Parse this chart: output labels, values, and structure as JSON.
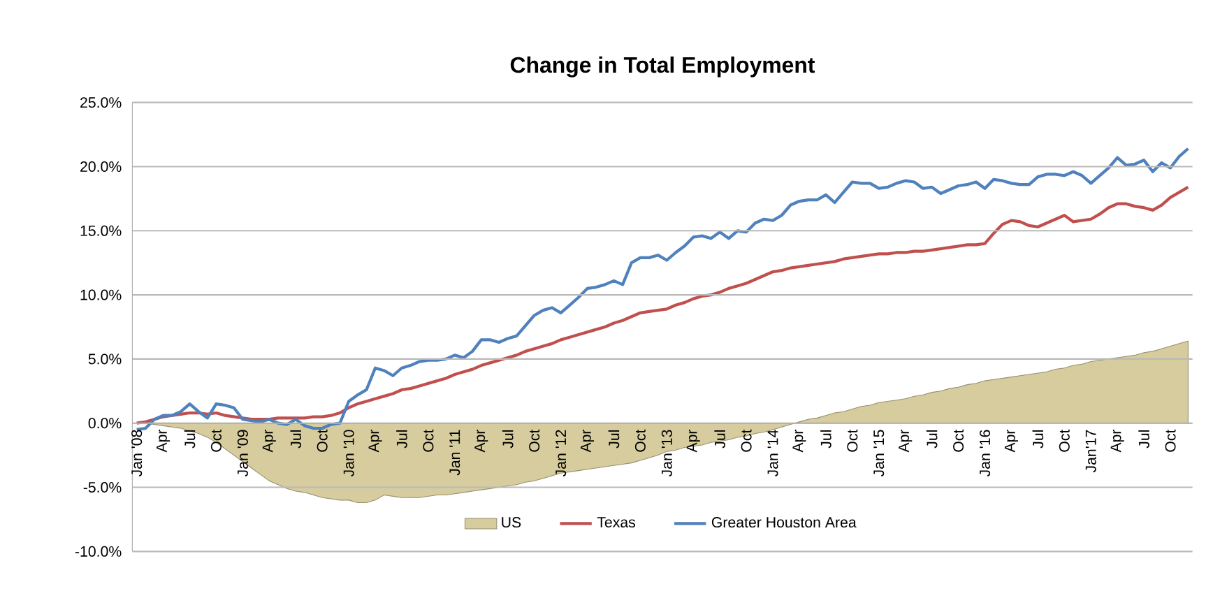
{
  "chart_data": {
    "type": "line",
    "title": "Change in Total Employment",
    "categories": [
      "Jan '08",
      null,
      null,
      "Apr",
      null,
      null,
      "Jul",
      null,
      null,
      "Oct",
      null,
      null,
      "Jan '09",
      null,
      null,
      "Apr",
      null,
      null,
      "Jul",
      null,
      null,
      "Oct",
      null,
      null,
      "Jan '10",
      null,
      null,
      "Apr",
      null,
      null,
      "Jul",
      null,
      null,
      "Oct",
      null,
      null,
      "Jan '11",
      null,
      null,
      "Apr",
      null,
      null,
      "Jul",
      null,
      null,
      "Oct",
      null,
      null,
      "Jan '12",
      null,
      null,
      "Apr",
      null,
      null,
      "Jul",
      null,
      null,
      "Oct",
      null,
      null,
      "Jan '13",
      null,
      null,
      "Apr",
      null,
      null,
      "Jul",
      null,
      null,
      "Oct",
      null,
      null,
      "Jan '14",
      null,
      null,
      "Apr",
      null,
      null,
      "Jul",
      null,
      null,
      "Oct",
      null,
      null,
      "Jan '15",
      null,
      null,
      "Apr",
      null,
      null,
      "Jul",
      null,
      null,
      "Oct",
      null,
      null,
      "Jan '16",
      null,
      null,
      "Apr",
      null,
      null,
      "Jul",
      null,
      null,
      "Oct",
      null,
      null,
      "Jan'17",
      null,
      null,
      "Apr",
      null,
      null,
      "Jul",
      null,
      null,
      "Oct",
      null,
      null
    ],
    "series": [
      {
        "name": "US",
        "type": "area",
        "color": "#d6cc9e",
        "values": [
          0,
          0,
          -0.1,
          -0.2,
          -0.3,
          -0.4,
          -0.6,
          -0.8,
          -1.1,
          -1.5,
          -2.0,
          -2.5,
          -3.0,
          -3.5,
          -4.0,
          -4.5,
          -4.8,
          -5.1,
          -5.3,
          -5.4,
          -5.6,
          -5.8,
          -5.9,
          -6.0,
          -6.0,
          -6.2,
          -6.2,
          -6.0,
          -5.6,
          -5.7,
          -5.8,
          -5.8,
          -5.8,
          -5.7,
          -5.6,
          -5.6,
          -5.5,
          -5.4,
          -5.3,
          -5.2,
          -5.1,
          -5.0,
          -4.9,
          -4.8,
          -4.6,
          -4.5,
          -4.3,
          -4.1,
          -3.9,
          -3.8,
          -3.7,
          -3.6,
          -3.5,
          -3.4,
          -3.3,
          -3.2,
          -3.1,
          -2.9,
          -2.7,
          -2.5,
          -2.2,
          -2.1,
          -1.9,
          -1.8,
          -1.7,
          -1.5,
          -1.4,
          -1.3,
          -1.1,
          -1.0,
          -0.8,
          -0.7,
          -0.5,
          -0.3,
          -0.1,
          0.1,
          0.3,
          0.4,
          0.6,
          0.8,
          0.9,
          1.1,
          1.3,
          1.4,
          1.6,
          1.7,
          1.8,
          1.9,
          2.1,
          2.2,
          2.4,
          2.5,
          2.7,
          2.8,
          3.0,
          3.1,
          3.3,
          3.4,
          3.5,
          3.6,
          3.7,
          3.8,
          3.9,
          4.0,
          4.2,
          4.3,
          4.5,
          4.6,
          4.8,
          4.9,
          5.0,
          5.1,
          5.2,
          5.3,
          5.5,
          5.6,
          5.8,
          6.0,
          6.2,
          6.4
        ]
      },
      {
        "name": "Texas",
        "color": "#c0504d",
        "values": [
          0.0,
          0.1,
          0.3,
          0.5,
          0.6,
          0.7,
          0.8,
          0.8,
          0.7,
          0.8,
          0.6,
          0.5,
          0.4,
          0.3,
          0.3,
          0.3,
          0.4,
          0.4,
          0.4,
          0.4,
          0.5,
          0.5,
          0.6,
          0.8,
          1.2,
          1.5,
          1.7,
          1.9,
          2.1,
          2.3,
          2.6,
          2.7,
          2.9,
          3.1,
          3.3,
          3.5,
          3.8,
          4.0,
          4.2,
          4.5,
          4.7,
          4.9,
          5.1,
          5.3,
          5.6,
          5.8,
          6.0,
          6.2,
          6.5,
          6.7,
          6.9,
          7.1,
          7.3,
          7.5,
          7.8,
          8.0,
          8.3,
          8.6,
          8.7,
          8.8,
          8.9,
          9.2,
          9.4,
          9.7,
          9.9,
          10.0,
          10.2,
          10.5,
          10.7,
          10.9,
          11.2,
          11.5,
          11.8,
          11.9,
          12.1,
          12.2,
          12.3,
          12.4,
          12.5,
          12.6,
          12.8,
          12.9,
          13.0,
          13.1,
          13.2,
          13.2,
          13.3,
          13.3,
          13.4,
          13.4,
          13.5,
          13.6,
          13.7,
          13.8,
          13.9,
          13.9,
          14.0,
          14.8,
          15.5,
          15.8,
          15.7,
          15.4,
          15.3,
          15.6,
          15.9,
          16.2,
          15.7,
          15.8,
          15.9,
          16.3,
          16.8,
          17.1,
          17.1,
          16.9,
          16.8,
          16.6,
          17.0,
          17.6,
          18.0,
          18.4
        ]
      },
      {
        "name": "Greater Houston Area",
        "color": "#4f81bd",
        "values": [
          -0.5,
          -0.4,
          0.3,
          0.6,
          0.6,
          0.9,
          1.5,
          0.9,
          0.4,
          1.5,
          1.4,
          1.2,
          0.3,
          0.2,
          0.1,
          0.3,
          0.0,
          -0.1,
          0.3,
          -0.2,
          -0.4,
          -0.4,
          -0.1,
          0.0,
          1.7,
          2.2,
          2.6,
          4.3,
          4.1,
          3.7,
          4.3,
          4.5,
          4.8,
          4.9,
          4.9,
          5.0,
          5.3,
          5.1,
          5.6,
          6.5,
          6.5,
          6.3,
          6.6,
          6.8,
          7.6,
          8.4,
          8.8,
          9.0,
          8.6,
          9.2,
          9.8,
          10.5,
          10.6,
          10.8,
          11.1,
          10.8,
          12.5,
          12.9,
          12.9,
          13.1,
          12.7,
          13.3,
          13.8,
          14.5,
          14.6,
          14.4,
          14.9,
          14.4,
          15.0,
          14.9,
          15.6,
          15.9,
          15.8,
          16.2,
          17.0,
          17.3,
          17.4,
          17.4,
          17.8,
          17.2,
          18.0,
          18.8,
          18.7,
          18.7,
          18.3,
          18.4,
          18.7,
          18.9,
          18.8,
          18.3,
          18.4,
          17.9,
          18.2,
          18.5,
          18.6,
          18.8,
          18.3,
          19.0,
          18.9,
          18.7,
          18.6,
          18.6,
          19.2,
          19.4,
          19.4,
          19.3,
          19.6,
          19.3,
          18.7,
          19.3,
          19.9,
          20.7,
          20.1,
          20.2,
          20.5,
          19.6,
          20.3,
          19.9,
          20.8,
          21.4
        ]
      }
    ],
    "ylim": [
      -10,
      25
    ],
    "yticks": [
      {
        "value": -10,
        "label": "-10.0%"
      },
      {
        "value": -5,
        "label": "-5.0%"
      },
      {
        "value": 0,
        "label": "0.0%"
      },
      {
        "value": 5,
        "label": "5.0%"
      },
      {
        "value": 10,
        "label": "10.0%"
      },
      {
        "value": 15,
        "label": "15.0%"
      },
      {
        "value": 20,
        "label": "20.0%"
      },
      {
        "value": 25,
        "label": "25.0%"
      }
    ],
    "grid": "y",
    "legend": "bottom",
    "marker": "none",
    "line_style": "solid"
  }
}
